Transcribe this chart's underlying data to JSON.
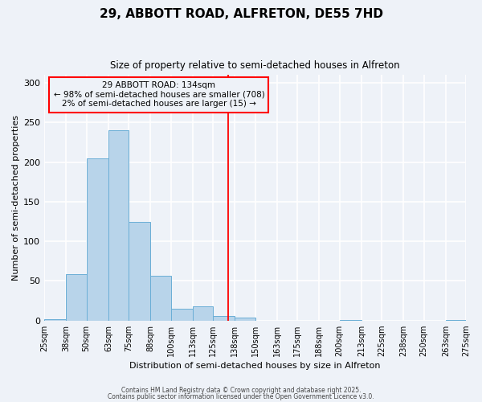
{
  "title": "29, ABBOTT ROAD, ALFRETON, DE55 7HD",
  "subtitle": "Size of property relative to semi-detached houses in Alfreton",
  "xlabel": "Distribution of semi-detached houses by size in Alfreton",
  "ylabel": "Number of semi-detached properties",
  "bin_edges": [
    25,
    38,
    50,
    63,
    75,
    88,
    100,
    113,
    125,
    138,
    150,
    163,
    175,
    188,
    200,
    213,
    225,
    238,
    250,
    263,
    275
  ],
  "bar_heights": [
    2,
    59,
    205,
    240,
    125,
    57,
    15,
    18,
    6,
    4,
    0,
    0,
    0,
    0,
    1,
    0,
    0,
    0,
    0,
    1
  ],
  "bar_color": "#b8d4ea",
  "bar_edge_color": "#6aaed6",
  "vline_x": 134,
  "vline_color": "red",
  "annotation_text": "29 ABBOTT ROAD: 134sqm\n← 98% of semi-detached houses are smaller (708)\n2% of semi-detached houses are larger (15) →",
  "annotation_box_color": "red",
  "ylim": [
    0,
    310
  ],
  "tick_labels": [
    "25sqm",
    "38sqm",
    "50sqm",
    "63sqm",
    "75sqm",
    "88sqm",
    "100sqm",
    "113sqm",
    "125sqm",
    "138sqm",
    "150sqm",
    "163sqm",
    "175sqm",
    "188sqm",
    "200sqm",
    "213sqm",
    "225sqm",
    "238sqm",
    "250sqm",
    "263sqm",
    "275sqm"
  ],
  "footnote1": "Contains HM Land Registry data © Crown copyright and database right 2025.",
  "footnote2": "Contains public sector information licensed under the Open Government Licence v3.0.",
  "background_color": "#eef2f8",
  "grid_color": "white",
  "title_fontsize": 11,
  "subtitle_fontsize": 8.5,
  "axis_label_fontsize": 8,
  "tick_fontsize": 7,
  "annot_fontsize": 7.5,
  "footnote_fontsize": 5.5
}
